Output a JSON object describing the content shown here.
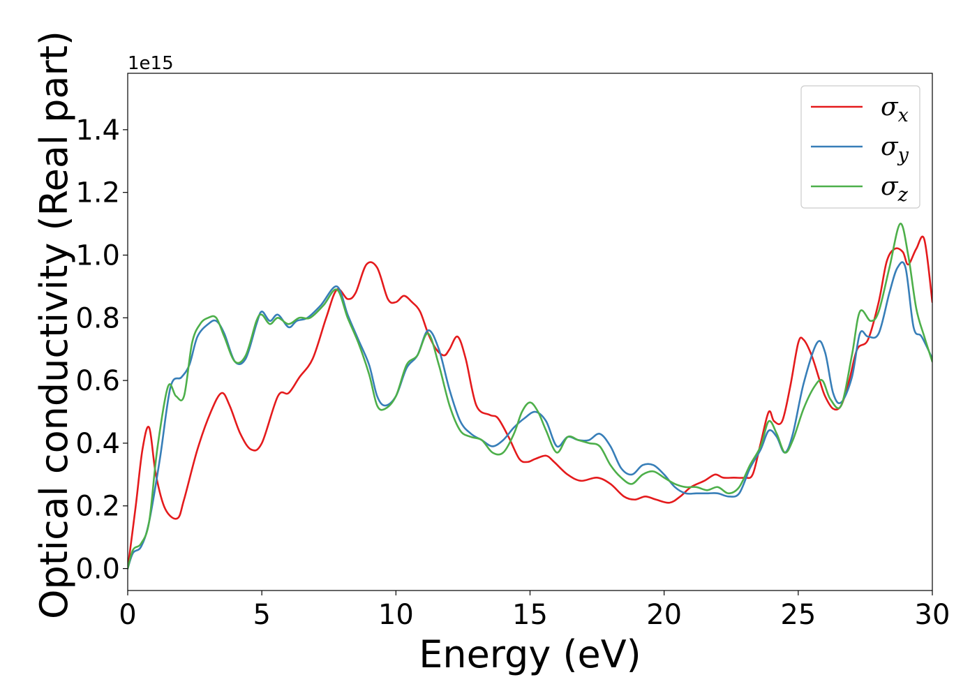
{
  "chart_data": {
    "type": "line",
    "xlabel": "Energy (eV)",
    "ylabel": "Optical conductivity (Real part)",
    "y_offset_label": "1e15",
    "xlim": [
      0,
      30
    ],
    "ylim": [
      -0.07,
      1.58
    ],
    "x_ticks": [
      0,
      5,
      10,
      15,
      20,
      25,
      30
    ],
    "x_tick_labels": [
      "0",
      "5",
      "10",
      "15",
      "20",
      "25",
      "30"
    ],
    "y_ticks": [
      0.0,
      0.2,
      0.4,
      0.6,
      0.8,
      1.0,
      1.2,
      1.4
    ],
    "y_tick_labels": [
      "0.0",
      "0.2",
      "0.4",
      "0.6",
      "0.8",
      "1.0",
      "1.2",
      "1.4"
    ],
    "grid": false,
    "legend_position": "top-right",
    "series": [
      {
        "name": "σx",
        "legend_base": "σ",
        "legend_sub": "x",
        "color": "#e41a1c",
        "x": [
          0,
          0.3,
          0.55,
          0.8,
          1.05,
          1.4,
          1.85,
          2.1,
          2.6,
          3.1,
          3.5,
          3.8,
          4.2,
          4.6,
          5.0,
          5.6,
          6.0,
          6.4,
          6.9,
          7.4,
          7.8,
          8.2,
          8.5,
          8.9,
          9.3,
          9.7,
          10.0,
          10.3,
          10.6,
          10.9,
          11.2,
          11.5,
          11.8,
          12.0,
          12.3,
          12.6,
          13.0,
          13.5,
          13.8,
          14.2,
          14.6,
          14.9,
          15.2,
          15.6,
          15.9,
          16.4,
          16.9,
          17.5,
          18.0,
          18.5,
          18.9,
          19.3,
          19.7,
          20.2,
          20.6,
          21.0,
          21.5,
          21.9,
          22.2,
          22.6,
          23.0,
          23.3,
          23.6,
          23.9,
          24.1,
          24.4,
          24.7,
          25.0,
          25.2,
          25.5,
          25.8,
          26.0,
          26.3,
          26.6,
          26.9,
          27.2,
          27.6,
          28.0,
          28.3,
          28.6,
          28.9,
          29.1,
          29.4,
          29.7,
          30.0
        ],
        "values": [
          0.0,
          0.2,
          0.38,
          0.45,
          0.3,
          0.19,
          0.16,
          0.22,
          0.38,
          0.5,
          0.56,
          0.52,
          0.43,
          0.38,
          0.4,
          0.55,
          0.56,
          0.61,
          0.67,
          0.8,
          0.89,
          0.86,
          0.88,
          0.97,
          0.96,
          0.86,
          0.85,
          0.87,
          0.85,
          0.82,
          0.75,
          0.7,
          0.68,
          0.7,
          0.74,
          0.67,
          0.52,
          0.49,
          0.48,
          0.42,
          0.35,
          0.34,
          0.35,
          0.36,
          0.34,
          0.3,
          0.28,
          0.29,
          0.27,
          0.23,
          0.22,
          0.23,
          0.22,
          0.21,
          0.23,
          0.26,
          0.28,
          0.3,
          0.29,
          0.29,
          0.29,
          0.3,
          0.4,
          0.5,
          0.47,
          0.47,
          0.58,
          0.72,
          0.73,
          0.68,
          0.6,
          0.55,
          0.51,
          0.52,
          0.6,
          0.7,
          0.73,
          0.85,
          0.98,
          1.02,
          1.01,
          0.97,
          1.02,
          1.05,
          0.85
        ]
      },
      {
        "name": "σy",
        "legend_base": "σ",
        "legend_sub": "y",
        "color": "#377eb8",
        "x": [
          0,
          0.2,
          0.5,
          0.8,
          1.2,
          1.6,
          2.0,
          2.3,
          2.6,
          3.0,
          3.3,
          3.6,
          4.0,
          4.4,
          4.8,
          5.0,
          5.3,
          5.6,
          6.0,
          6.3,
          6.7,
          7.2,
          7.8,
          8.2,
          8.6,
          9.0,
          9.3,
          9.6,
          10.0,
          10.4,
          10.8,
          11.2,
          11.6,
          12.0,
          12.4,
          12.8,
          13.2,
          13.6,
          14.0,
          14.4,
          14.8,
          15.2,
          15.6,
          16.0,
          16.4,
          16.8,
          17.2,
          17.6,
          18.0,
          18.4,
          18.8,
          19.2,
          19.6,
          20.0,
          20.4,
          20.8,
          21.2,
          21.6,
          22.0,
          22.4,
          22.8,
          23.2,
          23.6,
          23.9,
          24.2,
          24.5,
          24.8,
          25.2,
          25.7,
          26.0,
          26.3,
          26.6,
          27.0,
          27.3,
          27.6,
          28.0,
          28.4,
          28.7,
          29.0,
          29.3,
          29.6,
          30.0
        ],
        "values": [
          0.0,
          0.05,
          0.07,
          0.15,
          0.35,
          0.58,
          0.61,
          0.65,
          0.74,
          0.78,
          0.79,
          0.75,
          0.66,
          0.67,
          0.78,
          0.82,
          0.79,
          0.81,
          0.77,
          0.79,
          0.8,
          0.84,
          0.9,
          0.81,
          0.73,
          0.65,
          0.55,
          0.52,
          0.55,
          0.64,
          0.68,
          0.76,
          0.7,
          0.57,
          0.47,
          0.43,
          0.41,
          0.39,
          0.41,
          0.45,
          0.48,
          0.5,
          0.47,
          0.39,
          0.42,
          0.41,
          0.41,
          0.43,
          0.39,
          0.32,
          0.3,
          0.33,
          0.33,
          0.3,
          0.26,
          0.24,
          0.24,
          0.24,
          0.24,
          0.23,
          0.24,
          0.32,
          0.38,
          0.44,
          0.42,
          0.37,
          0.43,
          0.59,
          0.72,
          0.69,
          0.56,
          0.53,
          0.61,
          0.75,
          0.74,
          0.75,
          0.88,
          0.96,
          0.96,
          0.77,
          0.74,
          0.67
        ]
      },
      {
        "name": "σz",
        "legend_base": "σ",
        "legend_sub": "z",
        "color": "#4daf4a",
        "x": [
          0,
          0.2,
          0.5,
          0.8,
          1.1,
          1.5,
          1.8,
          2.1,
          2.4,
          2.7,
          3.0,
          3.3,
          3.6,
          4.0,
          4.4,
          4.8,
          5.0,
          5.3,
          5.6,
          6.0,
          6.4,
          6.8,
          7.3,
          7.8,
          8.2,
          8.6,
          9.0,
          9.3,
          9.6,
          10.0,
          10.4,
          10.8,
          11.2,
          11.6,
          12.0,
          12.4,
          12.8,
          13.2,
          13.6,
          14.0,
          14.4,
          14.7,
          15.0,
          15.3,
          15.6,
          16.0,
          16.4,
          16.8,
          17.2,
          17.6,
          18.0,
          18.4,
          18.8,
          19.2,
          19.6,
          20.0,
          20.4,
          20.8,
          21.2,
          21.6,
          22.0,
          22.4,
          22.8,
          23.2,
          23.6,
          23.9,
          24.2,
          24.5,
          24.8,
          25.2,
          25.6,
          25.9,
          26.2,
          26.6,
          27.0,
          27.3,
          27.7,
          28.0,
          28.4,
          28.8,
          29.1,
          29.4,
          29.7,
          30.0
        ],
        "values": [
          0.0,
          0.06,
          0.08,
          0.15,
          0.38,
          0.58,
          0.55,
          0.55,
          0.72,
          0.78,
          0.8,
          0.8,
          0.74,
          0.66,
          0.68,
          0.79,
          0.81,
          0.78,
          0.8,
          0.78,
          0.8,
          0.8,
          0.84,
          0.89,
          0.8,
          0.72,
          0.62,
          0.52,
          0.51,
          0.55,
          0.65,
          0.68,
          0.75,
          0.65,
          0.52,
          0.44,
          0.42,
          0.41,
          0.37,
          0.37,
          0.43,
          0.5,
          0.53,
          0.5,
          0.44,
          0.37,
          0.42,
          0.41,
          0.4,
          0.39,
          0.33,
          0.29,
          0.27,
          0.3,
          0.31,
          0.29,
          0.27,
          0.26,
          0.26,
          0.25,
          0.26,
          0.24,
          0.26,
          0.33,
          0.39,
          0.47,
          0.43,
          0.37,
          0.41,
          0.51,
          0.58,
          0.6,
          0.54,
          0.52,
          0.68,
          0.82,
          0.79,
          0.82,
          0.96,
          1.1,
          1.0,
          0.83,
          0.74,
          0.66
        ]
      }
    ]
  }
}
